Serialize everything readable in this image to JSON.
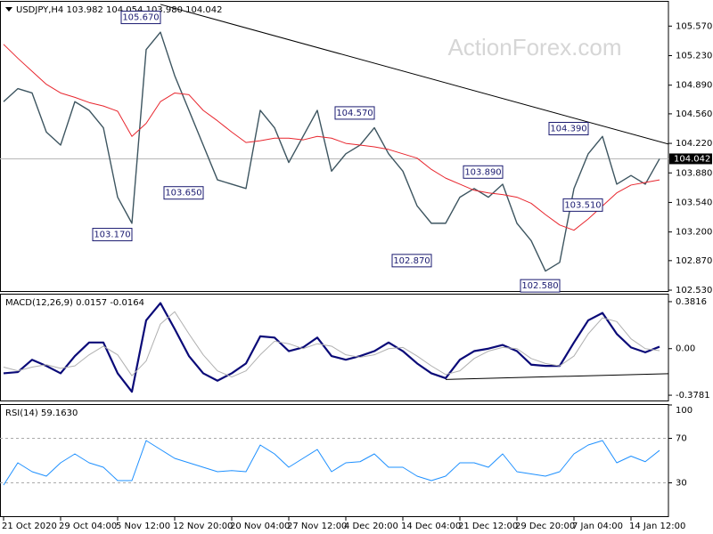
{
  "chart_data": [
    {
      "type": "line",
      "symbol": "USDJPY,H4",
      "ohlc": [
        {
          "value": 103.982,
          "label": "103.982"
        },
        {
          "value": 104.054,
          "label": "104.054"
        },
        {
          "value": 103.98,
          "label": "103.980"
        },
        {
          "value": 104.042,
          "label": "104.042"
        }
      ],
      "watermark": "ActionForex.com",
      "ylim": [
        102.52,
        105.85
      ],
      "yticks": [
        {
          "value": 102.53,
          "label": "102.530"
        },
        {
          "value": 102.87,
          "label": "102.870"
        },
        {
          "value": 103.2,
          "label": "103.200"
        },
        {
          "value": 103.54,
          "label": "103.540"
        },
        {
          "value": 103.88,
          "label": "103.880"
        },
        {
          "value": 104.22,
          "label": "104.220"
        },
        {
          "value": 104.56,
          "label": "104.560"
        },
        {
          "value": 104.89,
          "label": "104.890"
        },
        {
          "value": 105.23,
          "label": "105.230"
        },
        {
          "value": 105.57,
          "label": "105.570"
        }
      ],
      "last_price": {
        "value": 104.042,
        "label": "104.042"
      },
      "series": [
        {
          "color": "#3d5560",
          "values": [
            104.7,
            104.85,
            104.8,
            104.35,
            104.2,
            104.7,
            104.6,
            104.4,
            103.6,
            103.3,
            105.3,
            105.5,
            105.0,
            104.6,
            104.2,
            103.8,
            103.75,
            103.7,
            104.6,
            104.4,
            104.0,
            104.3,
            104.6,
            103.9,
            104.1,
            104.2,
            104.4,
            104.1,
            103.9,
            103.5,
            103.3,
            103.3,
            103.6,
            103.7,
            103.6,
            103.75,
            103.3,
            103.1,
            102.75,
            102.85,
            103.7,
            104.1,
            104.3,
            103.75,
            103.85,
            103.75,
            104.042
          ]
        },
        {
          "color": "#e8262e",
          "values": [
            105.36,
            105.2,
            105.05,
            104.9,
            104.8,
            104.75,
            104.69,
            104.65,
            104.59,
            104.3,
            104.45,
            104.7,
            104.8,
            104.78,
            104.6,
            104.48,
            104.35,
            104.23,
            104.25,
            104.28,
            104.28,
            104.26,
            104.3,
            104.28,
            104.22,
            104.2,
            104.18,
            104.15,
            104.1,
            104.05,
            103.92,
            103.82,
            103.75,
            103.68,
            103.65,
            103.63,
            103.6,
            103.53,
            103.4,
            103.28,
            103.22,
            103.35,
            103.5,
            103.65,
            103.74,
            103.77,
            103.8
          ]
        }
      ],
      "annotations": [
        {
          "index": 11,
          "value": 105.67,
          "label": "105.670"
        },
        {
          "index": 9,
          "value": 103.17,
          "label": "103.170"
        },
        {
          "index": 14,
          "value": 103.65,
          "label": "103.650"
        },
        {
          "index": 26,
          "value": 104.57,
          "label": "104.570"
        },
        {
          "index": 35,
          "value": 103.89,
          "label": "103.890"
        },
        {
          "index": 30,
          "value": 102.87,
          "label": "102.870"
        },
        {
          "index": 39,
          "value": 102.58,
          "label": "102.580"
        },
        {
          "index": 41,
          "value": 104.39,
          "label": "104.390"
        },
        {
          "index": 42,
          "value": 103.51,
          "label": "103.510"
        }
      ],
      "trendlines": [
        {
          "from": [
            11,
            105.82
          ],
          "to": [
            46,
            104.24
          ]
        }
      ]
    },
    {
      "type": "line",
      "title": "MACD(12,26,9)",
      "readouts": [
        0.0157,
        -0.0164
      ],
      "ylim": [
        -0.421,
        0.439
      ],
      "yticks": [
        0.3816,
        {
          "value": 0,
          "label": "0.00"
        },
        -0.3781
      ],
      "series": [
        {
          "color": "#0a0a78",
          "values": [
            -0.2,
            -0.19,
            -0.09,
            -0.14,
            -0.2,
            -0.06,
            0.05,
            0.05,
            -0.2,
            -0.35,
            0.23,
            0.37,
            0.16,
            -0.06,
            -0.2,
            -0.26,
            -0.2,
            -0.12,
            0.1,
            0.09,
            -0.02,
            0.01,
            0.09,
            -0.06,
            -0.09,
            -0.06,
            -0.02,
            0.05,
            -0.02,
            -0.12,
            -0.2,
            -0.24,
            -0.09,
            -0.02,
            0.0,
            0.03,
            -0.02,
            -0.13,
            -0.14,
            -0.14,
            0.05,
            0.23,
            0.29,
            0.12,
            0.01,
            -0.03,
            0.0157
          ]
        },
        {
          "color": "#b0b0b0",
          "values": [
            -0.15,
            -0.18,
            -0.15,
            -0.13,
            -0.16,
            -0.14,
            -0.05,
            0.02,
            -0.05,
            -0.22,
            -0.1,
            0.2,
            0.3,
            0.12,
            -0.05,
            -0.18,
            -0.23,
            -0.18,
            -0.05,
            0.06,
            0.04,
            0.0,
            0.04,
            0.02,
            -0.05,
            -0.07,
            -0.05,
            0.0,
            0.01,
            -0.06,
            -0.14,
            -0.21,
            -0.18,
            -0.08,
            -0.02,
            0.01,
            0.0,
            -0.08,
            -0.12,
            -0.14,
            -0.06,
            0.12,
            0.25,
            0.22,
            0.08,
            0.0,
            -0.0164
          ]
        }
      ],
      "trendlines": [
        {
          "from": [
            31,
            -0.25
          ],
          "to": [
            46,
            -0.205
          ]
        }
      ]
    },
    {
      "type": "line",
      "title": "RSI(14)",
      "readouts": [
        {
          "value": 59.163,
          "label": "59.1630"
        }
      ],
      "ylim": [
        0,
        100
      ],
      "yticks": [
        100,
        70,
        30
      ],
      "levels": [
        70,
        30
      ],
      "categories": [
        "21 Oct 2020",
        null,
        null,
        null,
        "29 Oct 04:00",
        null,
        null,
        null,
        "5 Nov 12:00",
        null,
        null,
        null,
        "12 Nov 20:00",
        null,
        null,
        null,
        "20 Nov 04:00",
        null,
        null,
        null,
        "27 Nov 12:00",
        null,
        null,
        null,
        "4 Dec 20:00",
        null,
        null,
        null,
        "14 Dec 04:00",
        null,
        null,
        null,
        "21 Dec 12:00",
        null,
        null,
        null,
        "29 Dec 20:00",
        null,
        null,
        null,
        "7 Jan 04:00",
        null,
        null,
        null,
        "14 Jan 12:00",
        null,
        null
      ],
      "series": [
        {
          "color": "#1e90ff",
          "values": [
            28,
            48,
            40,
            36,
            48,
            56,
            48,
            44,
            32,
            32,
            68,
            60,
            52,
            48,
            44,
            40,
            41,
            40,
            64,
            56,
            44,
            52,
            60,
            40,
            48,
            49,
            56,
            44,
            44,
            36,
            32,
            36,
            48,
            48,
            44,
            56,
            40,
            38,
            36,
            40,
            56,
            64,
            68,
            48,
            54,
            49,
            59.163
          ]
        }
      ]
    }
  ]
}
